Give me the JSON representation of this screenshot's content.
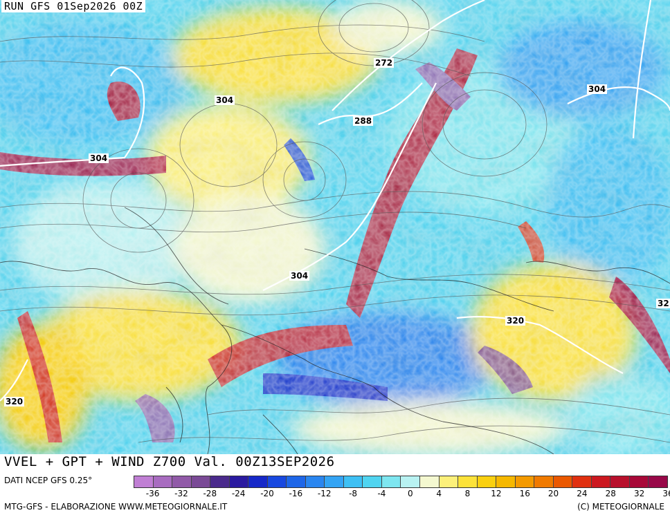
{
  "run_label": "RUN GFS 01Sep2026 00Z",
  "title": "VVEL + GPT + WIND Z700 Val. 00Z13SEP2026",
  "data_source": "DATI NCEP GFS 0.25°",
  "credits_left": "MTG-GFS - ELABORAZIONE WWW.METEOGIORNALE.IT",
  "credits_right": "(C) METEOGIORNALE",
  "contour_labels": [
    "272",
    "304",
    "288",
    "304",
    "304",
    "304",
    "320",
    "320",
    "32"
  ],
  "colorbar": {
    "colors": [
      "#c07fd4",
      "#a86cc0",
      "#915aa8",
      "#7a4a96",
      "#4a2a8c",
      "#2a1aa0",
      "#1628c8",
      "#1848e0",
      "#1e66e8",
      "#2a86f0",
      "#34a4f4",
      "#3ec0f4",
      "#50d4f0",
      "#7ee6f0",
      "#b8f2f2",
      "#f4f8d0",
      "#fcf07a",
      "#fce23a",
      "#fad010",
      "#f6b800",
      "#f49a00",
      "#f07a00",
      "#ea5800",
      "#e03010",
      "#cc1820",
      "#b8102c",
      "#a80838",
      "#980848"
    ],
    "ticks": [
      "-36",
      "-32",
      "-28",
      "-24",
      "-20",
      "-16",
      "-12",
      "-8",
      "-4",
      "0",
      "4",
      "8",
      "12",
      "16",
      "20",
      "24",
      "28",
      "32",
      "36"
    ]
  }
}
